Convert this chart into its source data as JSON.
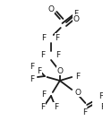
{
  "bg_color": "#ffffff",
  "bond_color": "#1a1a1a",
  "atom_color": "#1a1a1a",
  "line_width": 1.3,
  "font_size": 6.5,
  "figsize": [
    1.16,
    1.54
  ],
  "dpi": 100,
  "xlim": [
    0,
    116
  ],
  "ylim": [
    0,
    154
  ]
}
